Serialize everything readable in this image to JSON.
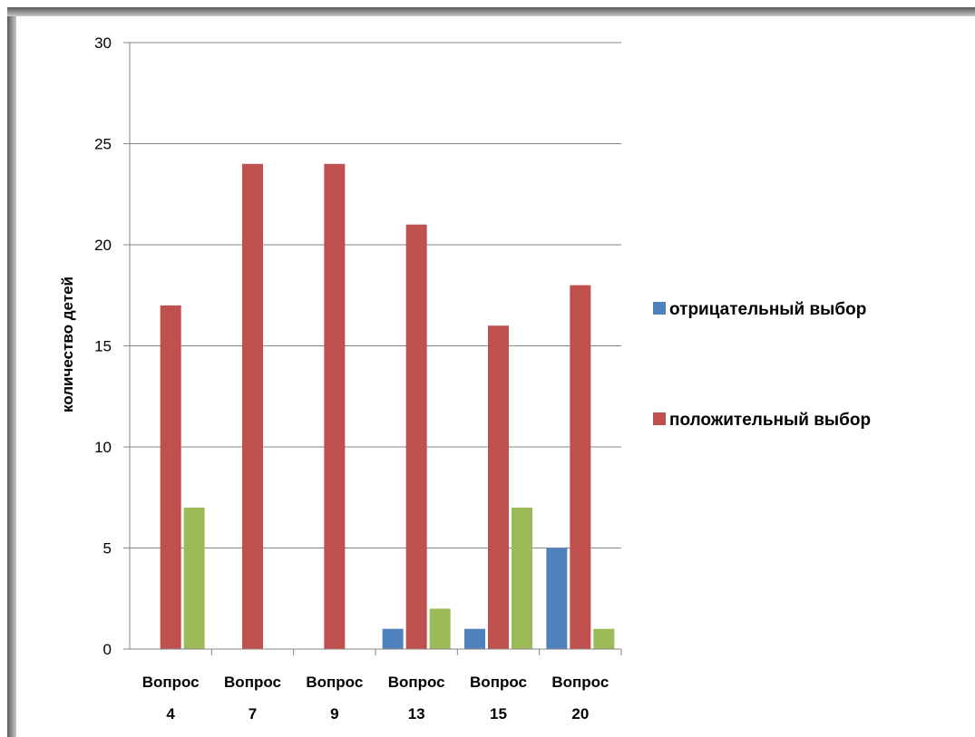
{
  "chart_data": {
    "type": "bar",
    "ylabel": "количество детей",
    "xlabel": "",
    "title": "",
    "ylim": [
      0,
      30
    ],
    "yticks": [
      0,
      5,
      10,
      15,
      20,
      25,
      30
    ],
    "grid": true,
    "legend_position": "right",
    "categories": [
      [
        "Вопрос",
        "4"
      ],
      [
        "Вопрос",
        "7"
      ],
      [
        "Вопрос",
        "9"
      ],
      [
        "Вопрос",
        "13"
      ],
      [
        "Вопрос",
        "15"
      ],
      [
        "Вопрос",
        "20"
      ]
    ],
    "series": [
      {
        "name": "отрицательный выбор",
        "color": "#4f81bd",
        "values": [
          0,
          0,
          0,
          1,
          1,
          5
        ],
        "in_legend": true
      },
      {
        "name": "положительный выбор",
        "color": "#c0504d",
        "values": [
          17,
          24,
          24,
          21,
          16,
          18
        ],
        "in_legend": true
      },
      {
        "name": "",
        "color": "#9bbb59",
        "values": [
          7,
          0,
          0,
          2,
          7,
          1
        ],
        "in_legend": false
      }
    ]
  }
}
